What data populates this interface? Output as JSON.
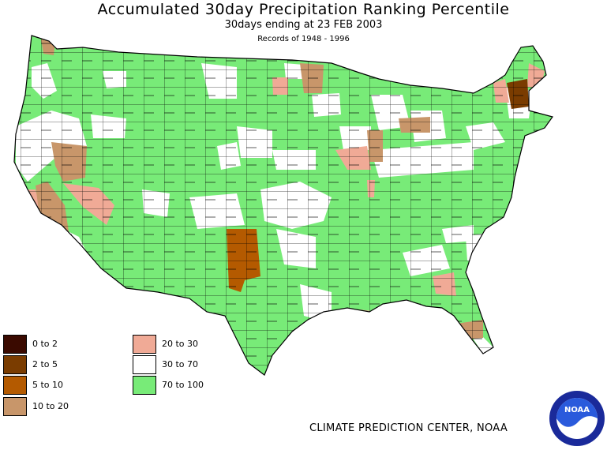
{
  "header": {
    "title": "Accumulated 30day Precipitation Ranking Percentile",
    "subtitle": "30days ending at 23 FEB 2003",
    "records": "Records of 1948 - 1996"
  },
  "legend": [
    {
      "label": "0 to 2",
      "color": "#3a0a00"
    },
    {
      "label": "2 to 5",
      "color": "#7a3c00"
    },
    {
      "label": "5 to 10",
      "color": "#b45a00"
    },
    {
      "label": "10 to 20",
      "color": "#c8966a"
    },
    {
      "label": "20 to 30",
      "color": "#f0aa96"
    },
    {
      "label": "30 to 70",
      "color": "#ffffff"
    },
    {
      "label": "70 to 100",
      "color": "#78eb78"
    }
  ],
  "credit": "CLIMATE PREDICTION CENTER, NOAA",
  "logo": {
    "text": "NOAA",
    "ring_color": "#1a2a9a",
    "center_color": "#2a5adc"
  }
}
